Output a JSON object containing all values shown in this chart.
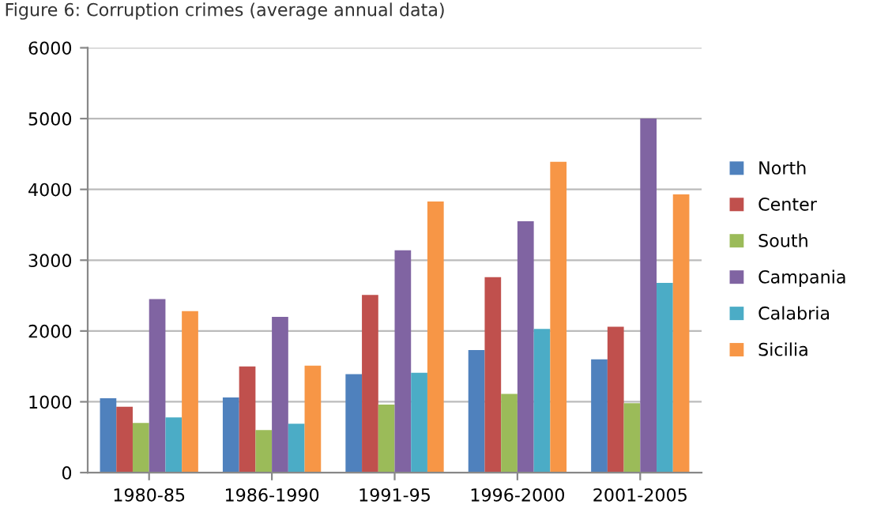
{
  "chart_data": {
    "type": "bar",
    "title": "Figure 6: Corruption crimes (average annual data)",
    "categories": [
      "1980-85",
      "1986-1990",
      "1991-95",
      "1996-2000",
      "2001-2005"
    ],
    "series": [
      {
        "name": "North",
        "color": "#4f81bd",
        "values": [
          1050,
          1060,
          1390,
          1730,
          1600
        ]
      },
      {
        "name": "Center",
        "color": "#c0504d",
        "values": [
          930,
          1500,
          2510,
          2760,
          2060
        ]
      },
      {
        "name": "South",
        "color": "#9bbb59",
        "values": [
          700,
          600,
          960,
          1110,
          980
        ]
      },
      {
        "name": "Campania",
        "color": "#8064a2",
        "values": [
          2450,
          2200,
          3140,
          3550,
          5000
        ]
      },
      {
        "name": "Calabria",
        "color": "#4bacc6",
        "values": [
          780,
          690,
          1410,
          2030,
          2680
        ]
      },
      {
        "name": "Sicilia",
        "color": "#f79646",
        "values": [
          2280,
          1510,
          3830,
          4390,
          3930
        ]
      }
    ],
    "ylim": [
      0,
      6000
    ],
    "yticks": [
      0,
      1000,
      2000,
      3000,
      4000,
      5000,
      6000
    ],
    "grid": "y",
    "legend": "right"
  }
}
